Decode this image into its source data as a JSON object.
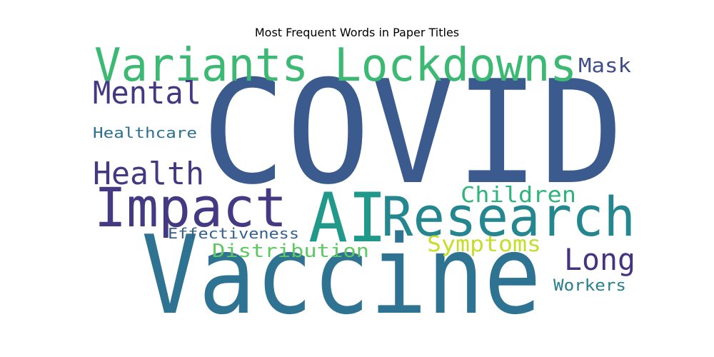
{
  "chart_data": {
    "type": "wordcloud",
    "title": "Most Frequent Words in Paper Titles",
    "words": [
      {
        "text": "COVID",
        "color": "#3b5a8e"
      },
      {
        "text": "Vaccine",
        "color": "#2e7392"
      },
      {
        "text": "Variants",
        "color": "#3cba74"
      },
      {
        "text": "Lockdowns",
        "color": "#3cba74"
      },
      {
        "text": "Impact",
        "color": "#443a84"
      },
      {
        "text": "AI",
        "color": "#21998a"
      },
      {
        "text": "Research",
        "color": "#24868e"
      },
      {
        "text": "Mental",
        "color": "#453882"
      },
      {
        "text": "Health",
        "color": "#453882"
      },
      {
        "text": "Mask",
        "color": "#3e4c8a"
      },
      {
        "text": "Children",
        "color": "#2fb47c"
      },
      {
        "text": "Symptoms",
        "color": "#c5de28"
      },
      {
        "text": "Long",
        "color": "#46337e"
      },
      {
        "text": "Distribution",
        "color": "#5ec962"
      },
      {
        "text": "Effectiveness",
        "color": "#35608d"
      },
      {
        "text": "Healthcare",
        "color": "#2c718e"
      },
      {
        "text": "Workers",
        "color": "#277f8e"
      }
    ]
  }
}
